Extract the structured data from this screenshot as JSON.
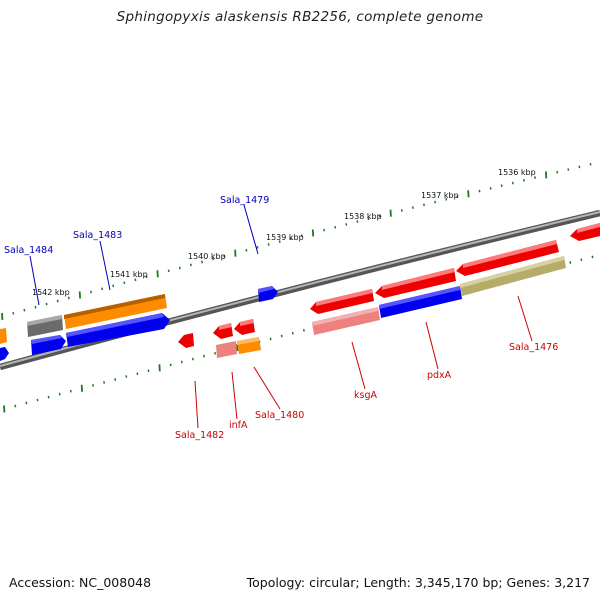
{
  "title": "Sphingopyxis alaskensis RB2256, complete genome",
  "footer": {
    "accession": "Accession: NC_008048",
    "summary": "Topology: circular; Length: 3,345,170 bp; Genes: 3,217"
  },
  "ticks": [
    "1536 kbp",
    "1537 kbp",
    "1538 kbp",
    "1539 kbp",
    "1540 kbp",
    "1541 kbp",
    "1542 kbp"
  ],
  "genes": [
    {
      "name": "Sala_1484",
      "strand": "+",
      "color": "#0000bb"
    },
    {
      "name": "Sala_1483",
      "strand": "+",
      "color": "#0000bb"
    },
    {
      "name": "Sala_1479",
      "strand": "+",
      "color": "#0000bb"
    },
    {
      "name": "Sala_1482",
      "strand": "-",
      "color": "#cc0000"
    },
    {
      "name": "infA",
      "strand": "-",
      "color": "#cc0000"
    },
    {
      "name": "Sala_1480",
      "strand": "-",
      "color": "#cc0000"
    },
    {
      "name": "ksgA",
      "strand": "-",
      "color": "#cc0000"
    },
    {
      "name": "pdxA",
      "strand": "-",
      "color": "#cc0000"
    },
    {
      "name": "Sala_1476",
      "strand": "-",
      "color": "#cc0000"
    }
  ],
  "colors": {
    "forward_label": "#0000bb",
    "reverse_label": "#cc0000",
    "backbone": "#7a7a7a",
    "tick": "#1f7a1f",
    "orange": "#ff8c00",
    "blue": "#0000ee",
    "red": "#ee0000",
    "pink": "#ee8888",
    "gray": "#666666",
    "olive": "#b8b070"
  }
}
